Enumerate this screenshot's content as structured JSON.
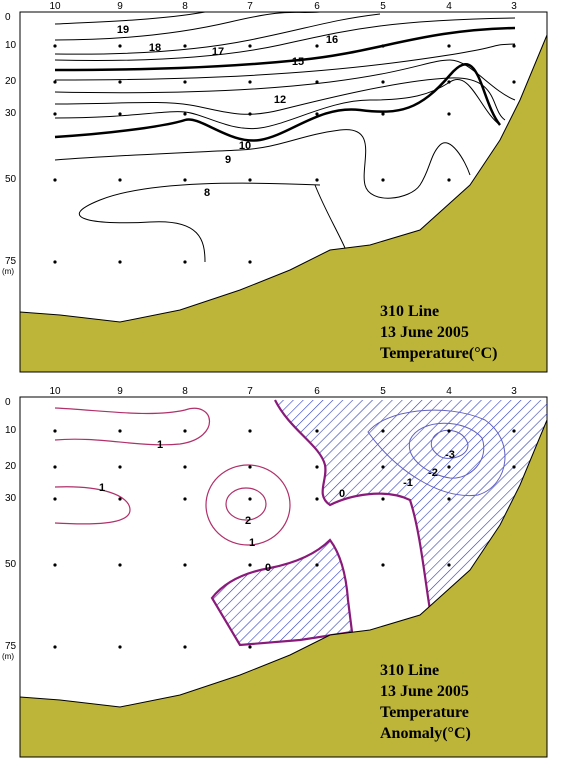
{
  "panels": [
    {
      "stations": [
        "10",
        "9",
        "8",
        "7",
        "6",
        "5",
        "4",
        "3"
      ],
      "depths": [
        "0",
        "10",
        "20",
        "30",
        "50",
        "75",
        "(m)"
      ],
      "contour_labels": [
        "19",
        "18",
        "17",
        "16",
        "15",
        "12",
        "10",
        "9",
        "8"
      ],
      "title": [
        "310 Line",
        "13 June 2005",
        "Temperature(°C)"
      ]
    },
    {
      "stations": [
        "10",
        "9",
        "8",
        "7",
        "6",
        "5",
        "4",
        "3"
      ],
      "depths": [
        "0",
        "10",
        "20",
        "30",
        "50",
        "75",
        "(m)"
      ],
      "contour_labels": [
        "1",
        "1",
        "1",
        "2",
        "0",
        "0",
        "-1",
        "-2",
        "-3"
      ],
      "title": [
        "310 Line",
        "13 June 2005",
        "Temperature",
        "Anomaly(°C)"
      ]
    }
  ]
}
